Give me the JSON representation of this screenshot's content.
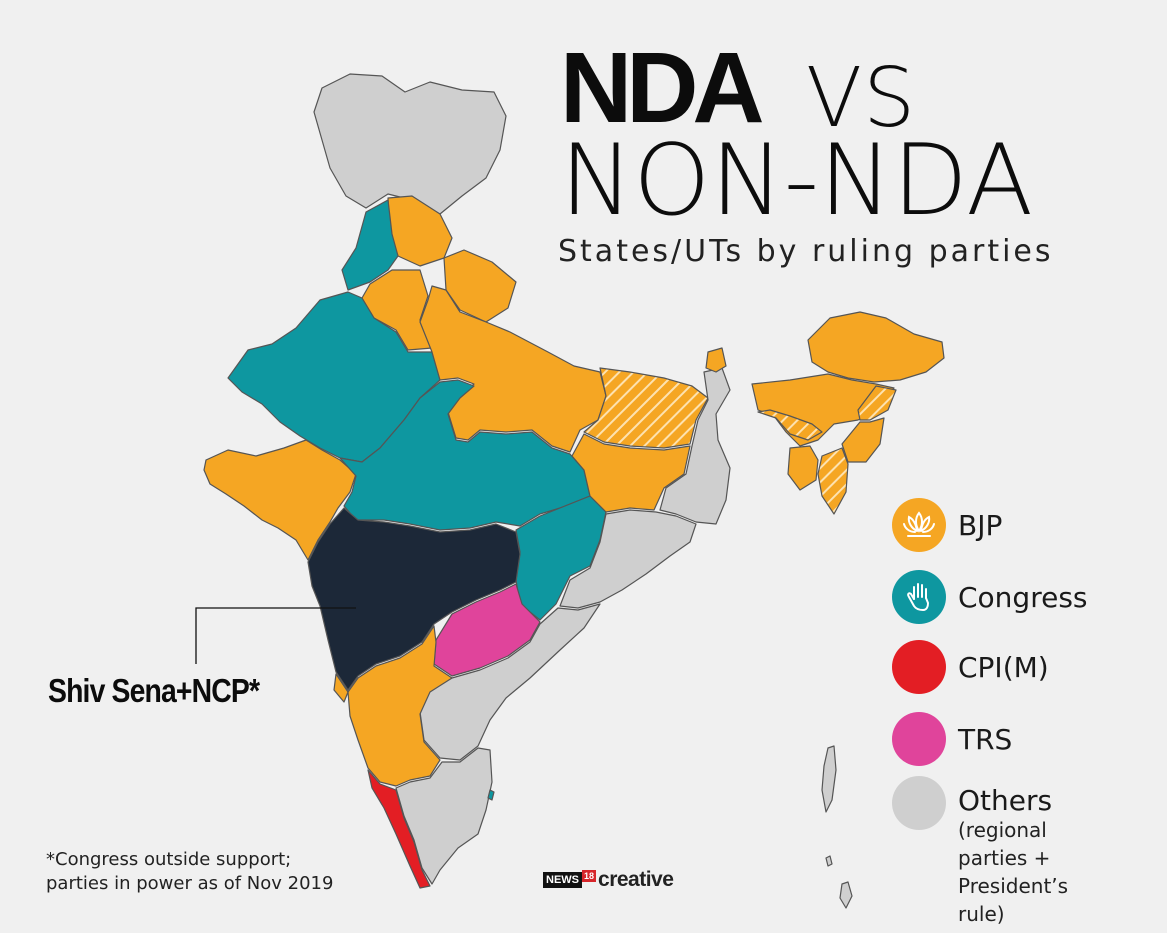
{
  "title": {
    "bold": "NDA",
    "vs": "VS",
    "line2": "NON-NDA",
    "subtitle": "States/UTs by ruling parties"
  },
  "legend": [
    {
      "label": "BJP",
      "color": "#f5a623",
      "icon": "lotus-icon"
    },
    {
      "label": "Congress",
      "color": "#0e97a0",
      "icon": "hand-icon"
    },
    {
      "label": "CPI(M)",
      "color": "#e31e24",
      "icon": ""
    },
    {
      "label": "TRS",
      "color": "#e0449b",
      "icon": ""
    },
    {
      "label": "Others",
      "color": "#cfcfcf",
      "icon": "",
      "note_line1": "(regional parties +",
      "note_line2": "President’s rule)"
    }
  ],
  "callout": "Shiv Sena+NCP*",
  "footnote": {
    "line1": "*Congress outside support;",
    "line2": "parties in power as of Nov 2019"
  },
  "brand": {
    "news": "NEWS",
    "num": "18",
    "creative": "creative"
  },
  "colors": {
    "bjp": "#f5a623",
    "congress": "#0e97a0",
    "cpim": "#e31e24",
    "trs": "#e0449b",
    "others": "#cfcfcf",
    "shivsena_ncp": "#1c2838"
  }
}
